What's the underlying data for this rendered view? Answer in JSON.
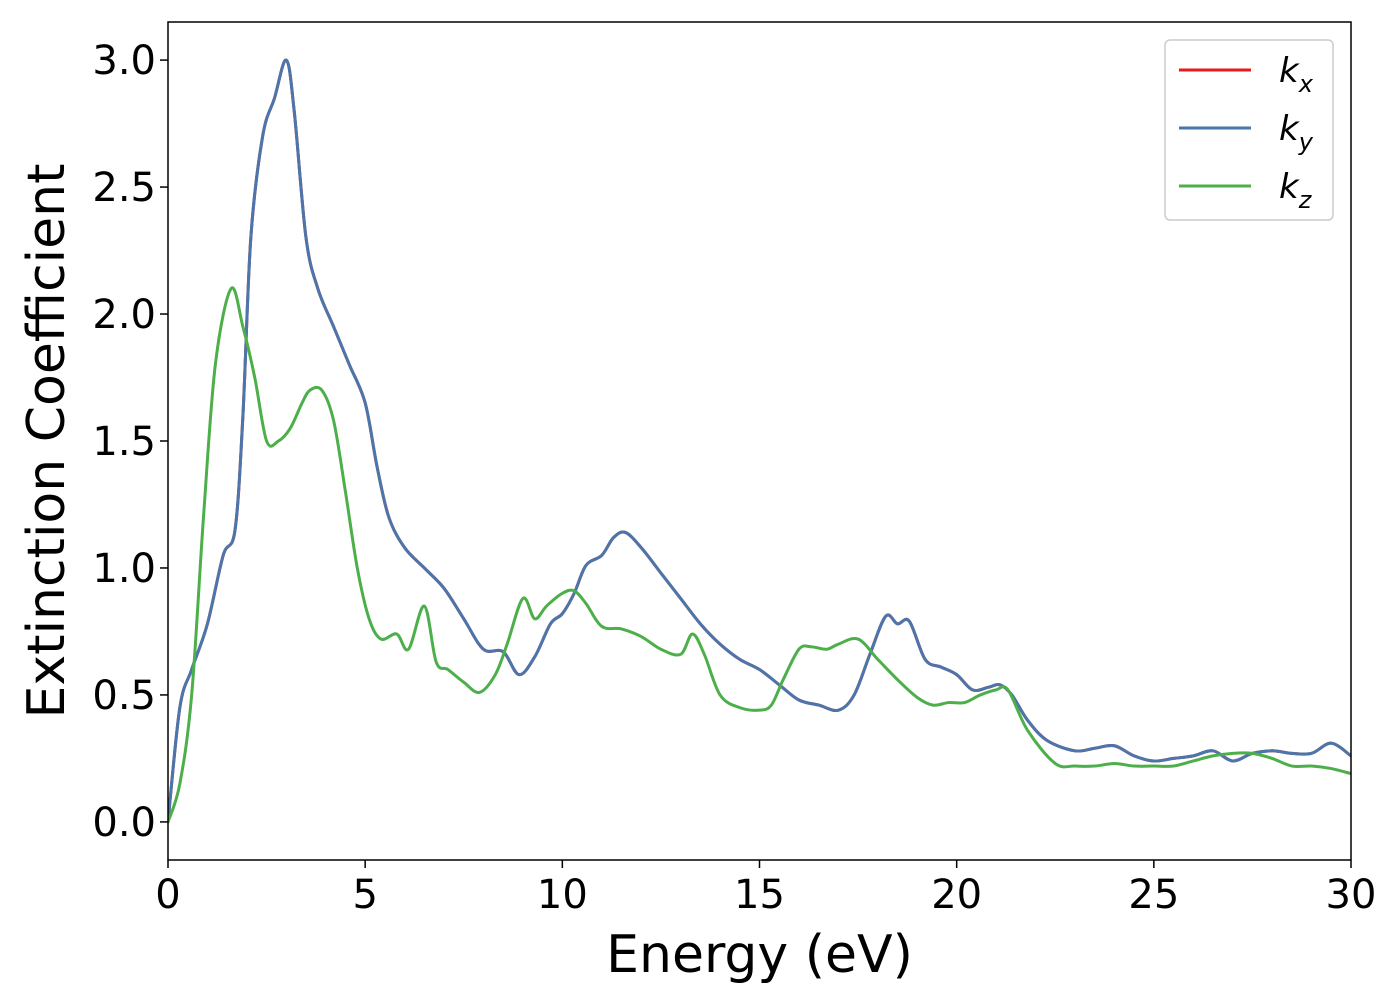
{
  "chart_data": {
    "type": "line",
    "title": "",
    "xlabel": "Energy (eV)",
    "ylabel": "Extinction Coefficient",
    "xlim": [
      0,
      30
    ],
    "ylim": [
      -0.15,
      3.15
    ],
    "xticks": [
      0,
      5,
      10,
      15,
      20,
      25,
      30
    ],
    "xtick_labels": [
      "0",
      "5",
      "10",
      "15",
      "20",
      "25",
      "30"
    ],
    "yticks": [
      0.0,
      0.5,
      1.0,
      1.5,
      2.0,
      2.5,
      3.0
    ],
    "ytick_labels": [
      "0.0",
      "0.5",
      "1.0",
      "1.5",
      "2.0",
      "2.5",
      "3.0"
    ],
    "grid": false,
    "legend": {
      "placement": "top-right"
    },
    "series": [
      {
        "name": "k",
        "subscript": "x",
        "color": "#e41a1c",
        "x": [
          0,
          0.3,
          0.6,
          1,
          1.4,
          1.7,
          1.9,
          2.1,
          2.4,
          2.7,
          3.0,
          3.2,
          3.5,
          3.8,
          4.2,
          4.6,
          5.0,
          5.3,
          5.6,
          6.0,
          6.5,
          7.0,
          7.5,
          8.0,
          8.5,
          8.9,
          9.3,
          9.7,
          10.0,
          10.3,
          10.6,
          11.0,
          11.3,
          11.6,
          12.0,
          12.5,
          13.0,
          13.5,
          14.0,
          14.5,
          15.0,
          15.5,
          16.0,
          16.5,
          17.0,
          17.4,
          17.8,
          18.2,
          18.5,
          18.8,
          19.2,
          19.6,
          20.0,
          20.4,
          20.8,
          21.1,
          21.4,
          21.8,
          22.3,
          23.0,
          23.5,
          24.0,
          24.5,
          25.0,
          25.5,
          26.0,
          26.5,
          27.0,
          27.5,
          28.0,
          28.5,
          29.0,
          29.5,
          30.0
        ],
        "y": [
          0.0,
          0.45,
          0.6,
          0.78,
          1.05,
          1.15,
          1.6,
          2.3,
          2.7,
          2.85,
          3.0,
          2.8,
          2.3,
          2.1,
          1.95,
          1.8,
          1.65,
          1.4,
          1.2,
          1.08,
          1.0,
          0.92,
          0.8,
          0.68,
          0.67,
          0.58,
          0.65,
          0.78,
          0.82,
          0.9,
          1.01,
          1.05,
          1.12,
          1.14,
          1.08,
          0.98,
          0.88,
          0.78,
          0.7,
          0.64,
          0.6,
          0.54,
          0.48,
          0.46,
          0.44,
          0.5,
          0.66,
          0.81,
          0.78,
          0.79,
          0.64,
          0.61,
          0.58,
          0.52,
          0.53,
          0.54,
          0.5,
          0.4,
          0.32,
          0.28,
          0.29,
          0.3,
          0.26,
          0.24,
          0.25,
          0.26,
          0.28,
          0.24,
          0.27,
          0.28,
          0.27,
          0.27,
          0.31,
          0.26
        ]
      },
      {
        "name": "k",
        "subscript": "y",
        "color": "#4a76ac",
        "x": [
          0,
          0.3,
          0.6,
          1,
          1.4,
          1.7,
          1.9,
          2.1,
          2.4,
          2.7,
          3.0,
          3.2,
          3.5,
          3.8,
          4.2,
          4.6,
          5.0,
          5.3,
          5.6,
          6.0,
          6.5,
          7.0,
          7.5,
          8.0,
          8.5,
          8.9,
          9.3,
          9.7,
          10.0,
          10.3,
          10.6,
          11.0,
          11.3,
          11.6,
          12.0,
          12.5,
          13.0,
          13.5,
          14.0,
          14.5,
          15.0,
          15.5,
          16.0,
          16.5,
          17.0,
          17.4,
          17.8,
          18.2,
          18.5,
          18.8,
          19.2,
          19.6,
          20.0,
          20.4,
          20.8,
          21.1,
          21.4,
          21.8,
          22.3,
          23.0,
          23.5,
          24.0,
          24.5,
          25.0,
          25.5,
          26.0,
          26.5,
          27.0,
          27.5,
          28.0,
          28.5,
          29.0,
          29.5,
          30.0
        ],
        "y": [
          0.0,
          0.45,
          0.6,
          0.78,
          1.05,
          1.15,
          1.6,
          2.3,
          2.7,
          2.85,
          3.0,
          2.8,
          2.3,
          2.1,
          1.95,
          1.8,
          1.65,
          1.4,
          1.2,
          1.08,
          1.0,
          0.92,
          0.8,
          0.68,
          0.67,
          0.58,
          0.65,
          0.78,
          0.82,
          0.9,
          1.01,
          1.05,
          1.12,
          1.14,
          1.08,
          0.98,
          0.88,
          0.78,
          0.7,
          0.64,
          0.6,
          0.54,
          0.48,
          0.46,
          0.44,
          0.5,
          0.66,
          0.81,
          0.78,
          0.79,
          0.64,
          0.61,
          0.58,
          0.52,
          0.53,
          0.54,
          0.5,
          0.4,
          0.32,
          0.28,
          0.29,
          0.3,
          0.26,
          0.24,
          0.25,
          0.26,
          0.28,
          0.24,
          0.27,
          0.28,
          0.27,
          0.27,
          0.31,
          0.26
        ]
      },
      {
        "name": "k",
        "subscript": "z",
        "color": "#4daf4a",
        "x": [
          0,
          0.3,
          0.6,
          0.9,
          1.2,
          1.6,
          1.9,
          2.2,
          2.5,
          2.8,
          3.1,
          3.4,
          3.6,
          3.9,
          4.2,
          4.5,
          4.8,
          5.1,
          5.4,
          5.8,
          6.1,
          6.5,
          6.8,
          7.1,
          7.5,
          7.9,
          8.3,
          8.6,
          9.0,
          9.3,
          9.6,
          10.0,
          10.3,
          10.6,
          11.0,
          11.5,
          12.0,
          12.5,
          13.0,
          13.3,
          13.6,
          14.0,
          14.5,
          15.0,
          15.3,
          15.6,
          16.0,
          16.3,
          16.7,
          17.0,
          17.5,
          18.0,
          18.5,
          19.0,
          19.4,
          19.8,
          20.2,
          20.6,
          21.0,
          21.3,
          21.8,
          22.5,
          23.0,
          23.5,
          24.0,
          24.5,
          25.0,
          25.5,
          26.0,
          26.5,
          27.0,
          27.5,
          28.0,
          28.5,
          29.0,
          29.5,
          30.0
        ],
        "y": [
          0.0,
          0.15,
          0.5,
          1.2,
          1.8,
          2.1,
          1.95,
          1.75,
          1.5,
          1.5,
          1.55,
          1.65,
          1.7,
          1.7,
          1.58,
          1.3,
          1.0,
          0.8,
          0.72,
          0.74,
          0.68,
          0.85,
          0.63,
          0.6,
          0.55,
          0.51,
          0.58,
          0.7,
          0.88,
          0.8,
          0.85,
          0.9,
          0.91,
          0.86,
          0.77,
          0.76,
          0.73,
          0.68,
          0.66,
          0.74,
          0.66,
          0.5,
          0.45,
          0.44,
          0.46,
          0.56,
          0.68,
          0.69,
          0.68,
          0.7,
          0.72,
          0.64,
          0.56,
          0.49,
          0.46,
          0.47,
          0.47,
          0.5,
          0.52,
          0.52,
          0.36,
          0.23,
          0.22,
          0.22,
          0.23,
          0.22,
          0.22,
          0.22,
          0.24,
          0.26,
          0.27,
          0.27,
          0.25,
          0.22,
          0.22,
          0.21,
          0.19
        ]
      }
    ]
  }
}
